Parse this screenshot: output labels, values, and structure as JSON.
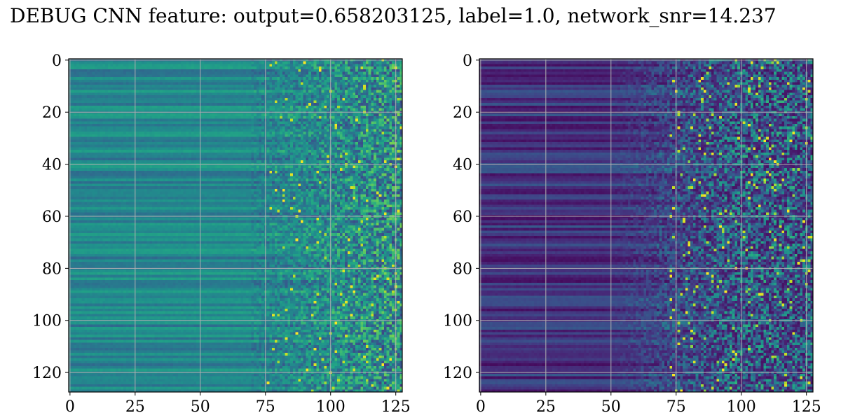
{
  "figure": {
    "title": "DEBUG CNN feature: output=0.658203125, label=1.0, network_snr=14.237"
  },
  "chart_data": [
    {
      "type": "heatmap",
      "colormap": "viridis",
      "rows": 128,
      "cols": 128,
      "xlim": [
        0,
        127
      ],
      "ylim": [
        127,
        0
      ],
      "xticks": [
        0,
        25,
        50,
        75,
        100,
        125
      ],
      "yticks": [
        0,
        20,
        40,
        60,
        80,
        100,
        120
      ],
      "grid": true,
      "value_range": [
        0,
        1
      ],
      "description_of_pattern": "horizontal bands (mostly teal/green, ~0.35-0.55) on columns 0-75; noisy speckle with bright yellow pixels on columns 75-127"
    },
    {
      "type": "heatmap",
      "colormap": "viridis",
      "rows": 128,
      "cols": 128,
      "xlim": [
        0,
        127
      ],
      "ylim": [
        127,
        0
      ],
      "xticks": [
        0,
        25,
        50,
        75,
        100,
        125
      ],
      "yticks": [
        0,
        20,
        40,
        60,
        80,
        100,
        120
      ],
      "grid": true,
      "value_range": [
        0,
        1
      ],
      "description_of_pattern": "dark purple horizontal bands (~0.05-0.25) on columns 0-50; noisy speckle rising with column index, bright yellow pixels on columns 75-127"
    }
  ]
}
